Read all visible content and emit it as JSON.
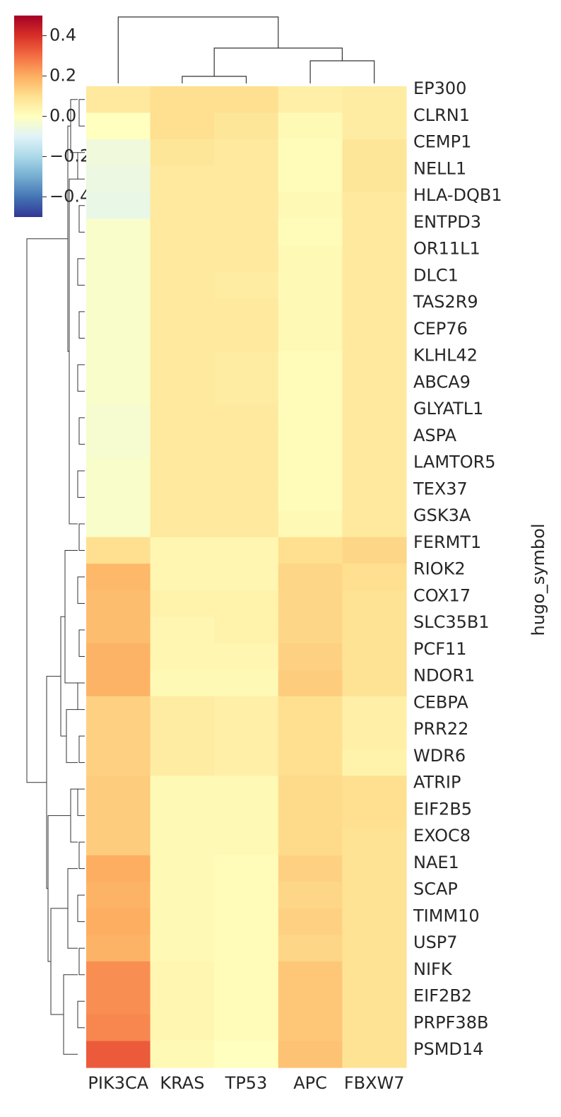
{
  "chart_data": {
    "type": "heatmap",
    "title": "",
    "xlabel": "",
    "ylabel": "hugo_symbol",
    "columns": [
      "PIK3CA",
      "KRAS",
      "TP53",
      "APC",
      "FBXW7"
    ],
    "row_labels": [
      "EP300",
      "CLRN1",
      "CEMP1",
      "NELL1",
      "HLA-DQB1",
      "ENTPD3",
      "OR11L1",
      "DLC1",
      "TAS2R9",
      "CEP76",
      "KLHL42",
      "ABCA9",
      "GLYATL1",
      "ASPA",
      "LAMTOR5",
      "TEX37",
      "GSK3A",
      "FERMT1",
      "RIOK2",
      "COX17",
      "SLC35B1",
      "PCF11",
      "NDOR1",
      "CEBPA",
      "PRR22",
      "WDR6",
      "ATRIP",
      "EIF2B5",
      "EXOC8",
      "NAE1",
      "SCAP",
      "TIMM10",
      "USP7",
      "NIFK",
      "EIF2B2",
      "PRPF38B",
      "PSMD14"
    ],
    "values": [
      [
        0.07,
        0.1,
        0.1,
        0.05,
        0.06
      ],
      [
        0.0,
        0.1,
        0.08,
        0.02,
        0.06
      ],
      [
        -0.05,
        0.08,
        0.07,
        0.01,
        0.08
      ],
      [
        -0.06,
        0.07,
        0.07,
        0.01,
        0.08
      ],
      [
        -0.07,
        0.07,
        0.07,
        0.02,
        0.07
      ],
      [
        -0.02,
        0.07,
        0.07,
        0.01,
        0.07
      ],
      [
        -0.02,
        0.07,
        0.07,
        0.02,
        0.07
      ],
      [
        -0.02,
        0.07,
        0.06,
        0.02,
        0.07
      ],
      [
        -0.02,
        0.07,
        0.07,
        0.02,
        0.07
      ],
      [
        -0.02,
        0.07,
        0.07,
        0.02,
        0.07
      ],
      [
        -0.02,
        0.07,
        0.06,
        0.01,
        0.07
      ],
      [
        -0.02,
        0.07,
        0.06,
        0.01,
        0.07
      ],
      [
        -0.03,
        0.07,
        0.07,
        0.01,
        0.07
      ],
      [
        -0.03,
        0.07,
        0.07,
        0.01,
        0.07
      ],
      [
        -0.02,
        0.07,
        0.07,
        0.01,
        0.07
      ],
      [
        -0.02,
        0.07,
        0.07,
        0.01,
        0.07
      ],
      [
        -0.02,
        0.07,
        0.07,
        0.02,
        0.07
      ],
      [
        0.1,
        0.03,
        0.03,
        0.1,
        0.12
      ],
      [
        0.18,
        0.03,
        0.03,
        0.12,
        0.1
      ],
      [
        0.17,
        0.04,
        0.04,
        0.12,
        0.09
      ],
      [
        0.17,
        0.03,
        0.04,
        0.12,
        0.09
      ],
      [
        0.19,
        0.03,
        0.03,
        0.13,
        0.09
      ],
      [
        0.19,
        0.02,
        0.02,
        0.14,
        0.09
      ],
      [
        0.13,
        0.06,
        0.05,
        0.1,
        0.05
      ],
      [
        0.13,
        0.06,
        0.05,
        0.1,
        0.05
      ],
      [
        0.13,
        0.06,
        0.05,
        0.1,
        0.04
      ],
      [
        0.14,
        0.02,
        0.02,
        0.11,
        0.1
      ],
      [
        0.14,
        0.02,
        0.02,
        0.11,
        0.1
      ],
      [
        0.14,
        0.02,
        0.02,
        0.11,
        0.09
      ],
      [
        0.2,
        0.02,
        0.01,
        0.13,
        0.09
      ],
      [
        0.19,
        0.02,
        0.01,
        0.12,
        0.09
      ],
      [
        0.2,
        0.02,
        0.01,
        0.13,
        0.09
      ],
      [
        0.19,
        0.02,
        0.01,
        0.12,
        0.09
      ],
      [
        0.25,
        0.03,
        0.01,
        0.15,
        0.09
      ],
      [
        0.25,
        0.03,
        0.01,
        0.15,
        0.09
      ],
      [
        0.26,
        0.03,
        0.01,
        0.15,
        0.09
      ],
      [
        0.33,
        0.02,
        0.0,
        0.16,
        0.09
      ]
    ],
    "colorbar": {
      "colormap": "RdYlBu_r",
      "vmin": -0.5,
      "vmax": 0.5,
      "ticks": [
        "0.4",
        "0.2",
        "0.0",
        "−0.2",
        "−0.4"
      ]
    },
    "dendrograms": {
      "rows": true,
      "columns": true
    },
    "grid": false
  }
}
